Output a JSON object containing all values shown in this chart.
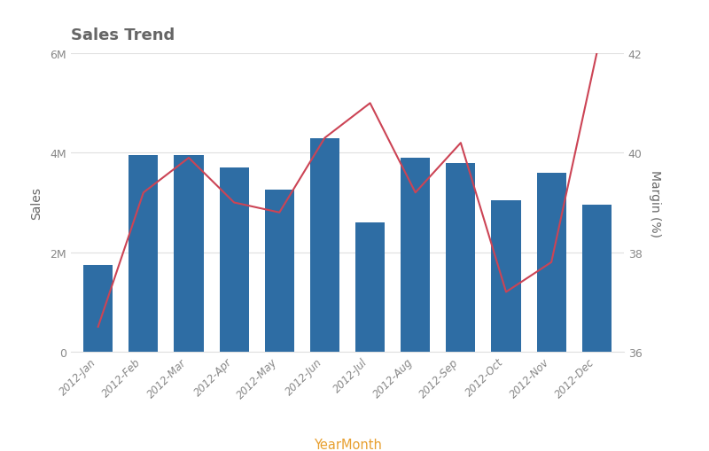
{
  "title": "Sales Trend",
  "xlabel": "YearMonth",
  "ylabel_left": "Sales",
  "ylabel_right": "Margin (%)",
  "categories": [
    "2012-Jan",
    "2012-Feb",
    "2012-Mar",
    "2012-Apr",
    "2012-May",
    "2012-Jun",
    "2012-Jul",
    "2012-Aug",
    "2012-Sep",
    "2012-Oct",
    "2012-Nov",
    "2012-Dec"
  ],
  "sales": [
    1750000,
    3950000,
    3950000,
    3700000,
    3250000,
    4300000,
    2600000,
    3900000,
    3800000,
    3050000,
    3600000,
    2950000
  ],
  "margin": [
    36.5,
    39.2,
    39.9,
    39.0,
    38.8,
    40.3,
    41.0,
    39.2,
    40.2,
    37.2,
    37.8,
    42.0
  ],
  "bar_color": "#2e6da4",
  "line_color": "#cc4455",
  "ylim_left": [
    0,
    6000000
  ],
  "ylim_right": [
    36,
    42
  ],
  "yticks_left": [
    0,
    2000000,
    4000000,
    6000000
  ],
  "yticks_right": [
    36,
    38,
    40,
    42
  ],
  "background_color": "#ffffff",
  "title_fontsize": 13,
  "title_color": "#666666",
  "xlabel_color": "#e8a030",
  "ylabel_color": "#666666",
  "tick_label_color": "#888888",
  "grid_color": "#e0e0e0"
}
